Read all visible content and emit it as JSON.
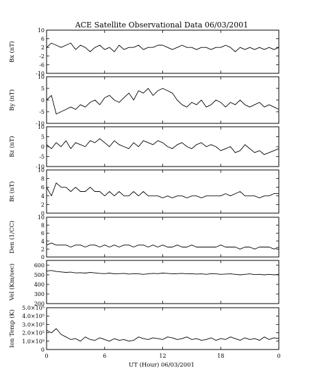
{
  "chart_data": {
    "type": "line",
    "title": "ACE Satellite Observational Data   06/03/2001",
    "xlabel": "UT (Hour)   06/03/2001",
    "x_ticks": [
      "0",
      "6",
      "12",
      "18",
      "0"
    ],
    "xlim": [
      0,
      24
    ],
    "line_color": "#000000",
    "panels": [
      {
        "ylabel": "Bx (nT)",
        "ylim": [
          -10,
          10
        ],
        "yticks": [
          10,
          6,
          2,
          -2,
          -6,
          -10
        ],
        "ytick_labels": [
          "10",
          "6",
          "2",
          "-2",
          "-6",
          "-10"
        ],
        "x": [
          0,
          0.5,
          1,
          1.5,
          2,
          2.5,
          3,
          3.5,
          4,
          4.5,
          5,
          5.5,
          6,
          6.5,
          7,
          7.5,
          8,
          8.5,
          9,
          9.5,
          10,
          10.5,
          11,
          11.5,
          12,
          12.5,
          13,
          13.5,
          14,
          14.5,
          15,
          15.5,
          16,
          16.5,
          17,
          17.5,
          18,
          18.5,
          19,
          19.5,
          20,
          20.5,
          21,
          21.5,
          22,
          22.5,
          23,
          23.5,
          24
        ],
        "values": [
          2,
          4,
          3,
          2,
          3,
          4,
          1,
          3,
          2,
          0,
          2,
          3,
          1,
          2,
          0,
          3,
          1,
          2,
          2,
          3,
          1,
          2,
          2,
          3,
          3,
          2,
          1,
          2,
          3,
          2,
          2,
          1,
          2,
          2,
          1,
          2,
          2,
          3,
          2,
          0,
          2,
          1,
          2,
          1,
          2,
          1,
          2,
          1,
          2
        ]
      },
      {
        "ylabel": "By (nT)",
        "ylim": [
          -10,
          10
        ],
        "yticks": [
          10,
          5,
          0,
          -5,
          -10
        ],
        "ytick_labels": [
          "10",
          "5",
          "0",
          "-5",
          "-10"
        ],
        "x": [
          0,
          0.5,
          1,
          1.5,
          2,
          2.5,
          3,
          3.5,
          4,
          4.5,
          5,
          5.5,
          6,
          6.5,
          7,
          7.5,
          8,
          8.5,
          9,
          9.5,
          10,
          10.5,
          11,
          11.5,
          12,
          12.5,
          13,
          13.5,
          14,
          14.5,
          15,
          15.5,
          16,
          16.5,
          17,
          17.5,
          18,
          18.5,
          19,
          19.5,
          20,
          20.5,
          21,
          21.5,
          22,
          22.5,
          23,
          23.5,
          24
        ],
        "values": [
          0,
          2,
          -6,
          -5,
          -4,
          -3,
          -4,
          -2,
          -3,
          -1,
          0,
          -2,
          1,
          2,
          0,
          -1,
          1,
          3,
          0,
          4,
          3,
          5,
          2,
          4,
          5,
          4,
          3,
          0,
          -2,
          -3,
          -1,
          -2,
          0,
          -3,
          -2,
          0,
          -1,
          -3,
          -1,
          -2,
          0,
          -2,
          -3,
          -2,
          -1,
          -3,
          -2,
          -3,
          -4
        ]
      },
      {
        "ylabel": "Bz (nT)",
        "ylim": [
          -10,
          10
        ],
        "yticks": [
          10,
          5,
          0,
          -5,
          -10
        ],
        "ytick_labels": [
          "10",
          "5",
          "0",
          "-5",
          "-10"
        ],
        "x": [
          0,
          0.5,
          1,
          1.5,
          2,
          2.5,
          3,
          3.5,
          4,
          4.5,
          5,
          5.5,
          6,
          6.5,
          7,
          7.5,
          8,
          8.5,
          9,
          9.5,
          10,
          10.5,
          11,
          11.5,
          12,
          12.5,
          13,
          13.5,
          14,
          14.5,
          15,
          15.5,
          16,
          16.5,
          17,
          17.5,
          18,
          18.5,
          19,
          19.5,
          20,
          20.5,
          21,
          21.5,
          22,
          22.5,
          23,
          23.5,
          24
        ],
        "values": [
          1,
          -1,
          2,
          0,
          3,
          -1,
          2,
          1,
          0,
          3,
          2,
          4,
          2,
          0,
          3,
          1,
          0,
          -1,
          2,
          0,
          3,
          2,
          1,
          3,
          2,
          0,
          -1,
          1,
          2,
          0,
          -1,
          1,
          2,
          0,
          1,
          0,
          -2,
          -1,
          0,
          -3,
          -2,
          1,
          -1,
          -3,
          -2,
          -4,
          -3,
          -2,
          -1
        ]
      },
      {
        "ylabel": "Bt (nT)",
        "ylim": [
          0,
          10
        ],
        "yticks": [
          10,
          8,
          6,
          4,
          2,
          0
        ],
        "ytick_labels": [
          "10",
          "8",
          "6",
          "4",
          "2",
          "0"
        ],
        "x": [
          0,
          0.5,
          1,
          1.5,
          2,
          2.5,
          3,
          3.5,
          4,
          4.5,
          5,
          5.5,
          6,
          6.5,
          7,
          7.5,
          8,
          8.5,
          9,
          9.5,
          10,
          10.5,
          11,
          11.5,
          12,
          12.5,
          13,
          13.5,
          14,
          14.5,
          15,
          15.5,
          16,
          16.5,
          17,
          17.5,
          18,
          18.5,
          19,
          19.5,
          20,
          20.5,
          21,
          21.5,
          22,
          22.5,
          23,
          23.5,
          24
        ],
        "values": [
          6,
          4,
          7,
          6,
          6,
          5,
          6,
          5,
          5,
          6,
          5,
          5,
          4,
          5,
          4,
          5,
          4,
          4,
          5,
          4,
          5,
          4,
          4,
          4,
          3.5,
          4,
          3.5,
          4,
          4,
          3.5,
          4,
          4,
          3.5,
          4,
          4,
          4,
          4,
          4.5,
          4,
          4.5,
          5,
          4,
          4,
          4,
          3.5,
          4,
          4,
          4.5,
          4.5
        ]
      },
      {
        "ylabel": "Den (1/CC)",
        "ylim": [
          0,
          10
        ],
        "yticks": [
          10,
          8,
          6,
          4,
          2,
          0
        ],
        "ytick_labels": [
          "10",
          "8",
          "6",
          "4",
          "2",
          "0"
        ],
        "x": [
          0,
          0.5,
          1,
          1.5,
          2,
          2.5,
          3,
          3.5,
          4,
          4.5,
          5,
          5.5,
          6,
          6.5,
          7,
          7.5,
          8,
          8.5,
          9,
          9.5,
          10,
          10.5,
          11,
          11.5,
          12,
          12.5,
          13,
          13.5,
          14,
          14.5,
          15,
          15.5,
          16,
          16.5,
          17,
          17.5,
          18,
          18.5,
          19,
          19.5,
          20,
          20.5,
          21,
          21.5,
          22,
          22.5,
          23,
          23.5,
          24
        ],
        "values": [
          3,
          3.5,
          3,
          3,
          3,
          2.5,
          3,
          3,
          2.5,
          3,
          3,
          2.5,
          3,
          2.5,
          3,
          2.5,
          3,
          3,
          2.5,
          3,
          3,
          2.5,
          3,
          2.5,
          3,
          2.5,
          2.5,
          3,
          2.5,
          2.5,
          3,
          2.5,
          2.5,
          2.5,
          2.5,
          2.5,
          3,
          2.5,
          2.5,
          2.5,
          2,
          2.5,
          2.5,
          2,
          2.5,
          2.5,
          2.5,
          2,
          2.5
        ]
      },
      {
        "ylabel": "Vel (Km/sec)",
        "ylim": [
          200,
          650
        ],
        "yticks": [
          600,
          500,
          400,
          300,
          200
        ],
        "ytick_labels": [
          "600",
          "500",
          "400",
          "300",
          "200"
        ],
        "x": [
          0,
          0.5,
          1,
          1.5,
          2,
          2.5,
          3,
          3.5,
          4,
          4.5,
          5,
          5.5,
          6,
          6.5,
          7,
          7.5,
          8,
          8.5,
          9,
          9.5,
          10,
          10.5,
          11,
          11.5,
          12,
          12.5,
          13,
          13.5,
          14,
          14.5,
          15,
          15.5,
          16,
          16.5,
          17,
          17.5,
          18,
          18.5,
          19,
          19.5,
          20,
          20.5,
          21,
          21.5,
          22,
          22.5,
          23,
          23.5,
          24
        ],
        "values": [
          540,
          545,
          535,
          530,
          525,
          528,
          520,
          522,
          518,
          525,
          520,
          515,
          512,
          518,
          510,
          512,
          515,
          508,
          512,
          510,
          505,
          510,
          515,
          512,
          518,
          515,
          510,
          512,
          515,
          510,
          512,
          508,
          510,
          505,
          512,
          510,
          505,
          508,
          510,
          505,
          500,
          505,
          510,
          502,
          505,
          500,
          505,
          500,
          505
        ]
      },
      {
        "ylabel": "Ion Temp (K)",
        "ylim": [
          0,
          500000
        ],
        "yticks": [
          500000,
          400000,
          300000,
          200000,
          100000,
          0
        ],
        "ytick_labels": [
          "5.0×10⁵",
          "4.0×10⁵",
          "3.0×10⁵",
          "2.0×10⁵",
          "1.0×10⁵",
          "0"
        ],
        "x": [
          0,
          0.5,
          1,
          1.5,
          2,
          2.5,
          3,
          3.5,
          4,
          4.5,
          5,
          5.5,
          6,
          6.5,
          7,
          7.5,
          8,
          8.5,
          9,
          9.5,
          10,
          10.5,
          11,
          11.5,
          12,
          12.5,
          13,
          13.5,
          14,
          14.5,
          15,
          15.5,
          16,
          16.5,
          17,
          17.5,
          18,
          18.5,
          19,
          19.5,
          20,
          20.5,
          21,
          21.5,
          22,
          22.5,
          23,
          23.5,
          24
        ],
        "values": [
          230000,
          200000,
          250000,
          180000,
          150000,
          120000,
          130000,
          100000,
          150000,
          120000,
          110000,
          140000,
          120000,
          100000,
          130000,
          110000,
          120000,
          100000,
          110000,
          150000,
          130000,
          120000,
          140000,
          130000,
          120000,
          150000,
          140000,
          120000,
          130000,
          150000,
          120000,
          130000,
          110000,
          120000,
          140000,
          110000,
          130000,
          120000,
          150000,
          130000,
          110000,
          140000,
          120000,
          130000,
          110000,
          150000,
          120000,
          140000,
          130000
        ]
      }
    ]
  }
}
